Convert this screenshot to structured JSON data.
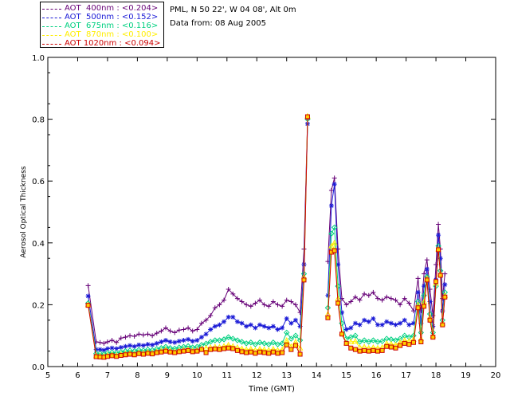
{
  "site_info": "PML, N 50 22', W 04 08', Alt 0m",
  "date_info": "Data from: 08 Aug 2005",
  "legend": [
    {
      "label": "AOT  400nm : <0.204>",
      "color": "#660077"
    },
    {
      "label": "AOT  500nm : <0.152>",
      "color": "#1a1ad6"
    },
    {
      "label": "AOT  675nm : <0.116>",
      "color": "#00d080"
    },
    {
      "label": "AOT  870nm : <0.100>",
      "color": "#ffee00"
    },
    {
      "label": "AOT 1020nm : <0.094>",
      "color": "#cc0000"
    }
  ],
  "chart_data": {
    "type": "line",
    "title": "",
    "xlabel": "Time (GMT)",
    "ylabel": "Aerosol Optical Thickness",
    "xlim": [
      5,
      20
    ],
    "ylim": [
      0,
      1.0
    ],
    "xticks": [
      5,
      6,
      7,
      8,
      9,
      10,
      11,
      12,
      13,
      14,
      15,
      16,
      17,
      18,
      19,
      20
    ],
    "yticks": [
      0.0,
      0.2,
      0.4,
      0.6,
      0.8,
      1.0
    ],
    "ytick_labels": [
      "0.0",
      "0.2",
      "0.4",
      "0.6",
      "0.8",
      "1.0"
    ],
    "grid": false,
    "series": [
      {
        "name": "AOT 400nm",
        "color": "#660077",
        "marker": "+",
        "x": [
          6.35,
          6.62,
          6.75,
          6.88,
          7.0,
          7.15,
          7.3,
          7.45,
          7.6,
          7.75,
          7.9,
          8.05,
          8.2,
          8.35,
          8.5,
          8.65,
          8.8,
          8.95,
          9.1,
          9.25,
          9.4,
          9.55,
          9.7,
          9.85,
          10.0,
          10.15,
          10.3,
          10.45,
          10.6,
          10.75,
          10.9,
          11.05,
          11.2,
          11.35,
          11.5,
          11.65,
          11.8,
          11.95,
          12.1,
          12.25,
          12.4,
          12.55,
          12.7,
          12.85,
          13.0,
          13.15,
          13.3,
          13.45,
          13.58,
          13.7,
          14.38,
          14.5,
          14.6,
          14.72,
          14.85,
          15.0,
          15.15,
          15.3,
          15.45,
          15.6,
          15.75,
          15.9,
          16.05,
          16.2,
          16.35,
          16.5,
          16.65,
          16.8,
          16.95,
          17.1,
          17.25,
          17.4,
          17.5,
          17.6,
          17.7,
          17.8,
          17.9,
          18.0,
          18.08,
          18.15,
          18.22,
          18.3
        ],
        "y": [
          0.262,
          0.08,
          0.078,
          0.075,
          0.08,
          0.085,
          0.078,
          0.092,
          0.095,
          0.1,
          0.098,
          0.105,
          0.102,
          0.105,
          0.1,
          0.108,
          0.115,
          0.125,
          0.115,
          0.11,
          0.118,
          0.12,
          0.125,
          0.115,
          0.12,
          0.14,
          0.15,
          0.165,
          0.19,
          0.2,
          0.215,
          0.25,
          0.235,
          0.22,
          0.21,
          0.2,
          0.195,
          0.205,
          0.215,
          0.2,
          0.195,
          0.21,
          0.2,
          0.195,
          0.215,
          0.21,
          0.2,
          0.175,
          0.38,
          0.8,
          0.34,
          0.57,
          0.61,
          0.38,
          0.22,
          0.2,
          0.21,
          0.225,
          0.215,
          0.235,
          0.23,
          0.24,
          0.22,
          0.215,
          0.225,
          0.22,
          0.215,
          0.2,
          0.22,
          0.205,
          0.18,
          0.285,
          0.18,
          0.3,
          0.345,
          0.25,
          0.165,
          0.33,
          0.46,
          0.38,
          0.22,
          0.3
        ]
      },
      {
        "name": "AOT 500nm",
        "color": "#1a1ad6",
        "marker": "*",
        "x": [
          6.35,
          6.62,
          6.75,
          6.88,
          7.0,
          7.15,
          7.3,
          7.45,
          7.6,
          7.75,
          7.9,
          8.05,
          8.2,
          8.35,
          8.5,
          8.65,
          8.8,
          8.95,
          9.1,
          9.25,
          9.4,
          9.55,
          9.7,
          9.85,
          10.0,
          10.15,
          10.3,
          10.45,
          10.6,
          10.75,
          10.9,
          11.05,
          11.2,
          11.35,
          11.5,
          11.65,
          11.8,
          11.95,
          12.1,
          12.25,
          12.4,
          12.55,
          12.7,
          12.85,
          13.0,
          13.15,
          13.3,
          13.45,
          13.58,
          13.7,
          14.38,
          14.5,
          14.6,
          14.72,
          14.85,
          15.0,
          15.15,
          15.3,
          15.45,
          15.6,
          15.75,
          15.9,
          16.05,
          16.2,
          16.35,
          16.5,
          16.65,
          16.8,
          16.95,
          17.1,
          17.25,
          17.4,
          17.5,
          17.6,
          17.7,
          17.8,
          17.9,
          18.0,
          18.08,
          18.15,
          18.22,
          18.3
        ],
        "y": [
          0.228,
          0.055,
          0.055,
          0.053,
          0.058,
          0.06,
          0.058,
          0.062,
          0.065,
          0.068,
          0.065,
          0.07,
          0.068,
          0.072,
          0.07,
          0.075,
          0.08,
          0.085,
          0.08,
          0.078,
          0.082,
          0.085,
          0.088,
          0.082,
          0.085,
          0.095,
          0.105,
          0.12,
          0.13,
          0.135,
          0.145,
          0.16,
          0.16,
          0.145,
          0.14,
          0.13,
          0.135,
          0.125,
          0.135,
          0.13,
          0.125,
          0.13,
          0.12,
          0.125,
          0.155,
          0.14,
          0.15,
          0.13,
          0.33,
          0.785,
          0.23,
          0.52,
          0.59,
          0.33,
          0.175,
          0.12,
          0.125,
          0.14,
          0.135,
          0.15,
          0.145,
          0.155,
          0.135,
          0.135,
          0.145,
          0.14,
          0.135,
          0.14,
          0.15,
          0.135,
          0.14,
          0.24,
          0.14,
          0.26,
          0.315,
          0.21,
          0.13,
          0.28,
          0.425,
          0.35,
          0.18,
          0.265
        ]
      },
      {
        "name": "AOT 675nm",
        "color": "#00d080",
        "marker": "diamond",
        "x": [
          6.35,
          6.62,
          6.75,
          6.88,
          7.0,
          7.15,
          7.3,
          7.45,
          7.6,
          7.75,
          7.9,
          8.05,
          8.2,
          8.35,
          8.5,
          8.65,
          8.8,
          8.95,
          9.1,
          9.25,
          9.4,
          9.55,
          9.7,
          9.85,
          10.0,
          10.15,
          10.3,
          10.45,
          10.6,
          10.75,
          10.9,
          11.05,
          11.2,
          11.35,
          11.5,
          11.65,
          11.8,
          11.95,
          12.1,
          12.25,
          12.4,
          12.55,
          12.7,
          12.85,
          13.0,
          13.15,
          13.3,
          13.45,
          13.58,
          13.7,
          14.38,
          14.5,
          14.6,
          14.72,
          14.85,
          15.0,
          15.15,
          15.3,
          15.45,
          15.6,
          15.75,
          15.9,
          16.05,
          16.2,
          16.35,
          16.5,
          16.65,
          16.8,
          16.95,
          17.1,
          17.25,
          17.4,
          17.5,
          17.6,
          17.7,
          17.8,
          17.9,
          18.0,
          18.08,
          18.15,
          18.22,
          18.3
        ],
        "y": [
          0.205,
          0.042,
          0.042,
          0.04,
          0.044,
          0.046,
          0.044,
          0.047,
          0.05,
          0.052,
          0.05,
          0.054,
          0.052,
          0.055,
          0.053,
          0.057,
          0.06,
          0.064,
          0.06,
          0.058,
          0.062,
          0.064,
          0.066,
          0.062,
          0.064,
          0.07,
          0.074,
          0.08,
          0.085,
          0.085,
          0.088,
          0.095,
          0.09,
          0.085,
          0.08,
          0.075,
          0.078,
          0.072,
          0.078,
          0.075,
          0.072,
          0.078,
          0.072,
          0.075,
          0.11,
          0.09,
          0.1,
          0.085,
          0.3,
          0.8,
          0.19,
          0.43,
          0.45,
          0.26,
          0.14,
          0.09,
          0.095,
          0.1,
          0.08,
          0.085,
          0.08,
          0.085,
          0.08,
          0.082,
          0.09,
          0.088,
          0.085,
          0.09,
          0.1,
          0.095,
          0.1,
          0.21,
          0.11,
          0.23,
          0.29,
          0.17,
          0.11,
          0.26,
          0.39,
          0.31,
          0.15,
          0.24
        ]
      },
      {
        "name": "AOT 870nm",
        "color": "#ffee00",
        "marker": "triangle",
        "x": [
          6.35,
          6.62,
          6.75,
          6.88,
          7.0,
          7.15,
          7.3,
          7.45,
          7.6,
          7.75,
          7.9,
          8.05,
          8.2,
          8.35,
          8.5,
          8.65,
          8.8,
          8.95,
          9.1,
          9.25,
          9.4,
          9.55,
          9.7,
          9.85,
          10.0,
          10.15,
          10.3,
          10.45,
          10.6,
          10.75,
          10.9,
          11.05,
          11.2,
          11.35,
          11.5,
          11.65,
          11.8,
          11.95,
          12.1,
          12.25,
          12.4,
          12.55,
          12.7,
          12.85,
          13.0,
          13.15,
          13.3,
          13.45,
          13.58,
          13.7,
          14.38,
          14.5,
          14.6,
          14.72,
          14.85,
          15.0,
          15.15,
          15.3,
          15.45,
          15.6,
          15.75,
          15.9,
          16.05,
          16.2,
          16.35,
          16.5,
          16.65,
          16.8,
          16.95,
          17.1,
          17.25,
          17.4,
          17.5,
          17.6,
          17.7,
          17.8,
          17.9,
          18.0,
          18.08,
          18.15,
          18.22,
          18.3
        ],
        "y": [
          0.2,
          0.035,
          0.034,
          0.033,
          0.036,
          0.038,
          0.036,
          0.039,
          0.041,
          0.043,
          0.041,
          0.045,
          0.043,
          0.046,
          0.044,
          0.048,
          0.05,
          0.054,
          0.05,
          0.048,
          0.051,
          0.053,
          0.055,
          0.051,
          0.053,
          0.058,
          0.06,
          0.062,
          0.064,
          0.063,
          0.066,
          0.07,
          0.066,
          0.062,
          0.058,
          0.055,
          0.057,
          0.053,
          0.057,
          0.055,
          0.053,
          0.057,
          0.053,
          0.055,
          0.085,
          0.065,
          0.08,
          0.06,
          0.29,
          0.81,
          0.17,
          0.39,
          0.4,
          0.22,
          0.11,
          0.076,
          0.08,
          0.082,
          0.062,
          0.064,
          0.06,
          0.062,
          0.06,
          0.062,
          0.075,
          0.073,
          0.07,
          0.078,
          0.085,
          0.082,
          0.088,
          0.2,
          0.09,
          0.21,
          0.285,
          0.16,
          0.1,
          0.27,
          0.38,
          0.3,
          0.14,
          0.23
        ]
      },
      {
        "name": "AOT 1020nm",
        "color": "#cc0000",
        "marker": "square",
        "x": [
          6.35,
          6.62,
          6.75,
          6.88,
          7.0,
          7.15,
          7.3,
          7.45,
          7.6,
          7.75,
          7.9,
          8.05,
          8.2,
          8.35,
          8.5,
          8.65,
          8.8,
          8.95,
          9.1,
          9.25,
          9.4,
          9.55,
          9.7,
          9.85,
          10.0,
          10.15,
          10.3,
          10.45,
          10.6,
          10.75,
          10.9,
          11.05,
          11.2,
          11.35,
          11.5,
          11.65,
          11.8,
          11.95,
          12.1,
          12.25,
          12.4,
          12.55,
          12.7,
          12.85,
          13.0,
          13.15,
          13.3,
          13.45,
          13.58,
          13.7,
          14.38,
          14.5,
          14.6,
          14.72,
          14.85,
          15.0,
          15.15,
          15.3,
          15.45,
          15.6,
          15.75,
          15.9,
          16.05,
          16.2,
          16.35,
          16.5,
          16.65,
          16.8,
          16.95,
          17.1,
          17.25,
          17.4,
          17.5,
          17.6,
          17.7,
          17.8,
          17.9,
          18.0,
          18.08,
          18.15,
          18.22,
          18.3
        ],
        "y": [
          0.198,
          0.032,
          0.031,
          0.03,
          0.033,
          0.035,
          0.033,
          0.036,
          0.038,
          0.04,
          0.038,
          0.042,
          0.04,
          0.043,
          0.041,
          0.045,
          0.047,
          0.05,
          0.047,
          0.045,
          0.048,
          0.05,
          0.052,
          0.048,
          0.05,
          0.055,
          0.045,
          0.055,
          0.057,
          0.055,
          0.058,
          0.06,
          0.058,
          0.052,
          0.048,
          0.045,
          0.047,
          0.043,
          0.047,
          0.045,
          0.043,
          0.047,
          0.043,
          0.045,
          0.07,
          0.055,
          0.068,
          0.04,
          0.28,
          0.808,
          0.158,
          0.37,
          0.375,
          0.205,
          0.105,
          0.075,
          0.06,
          0.055,
          0.05,
          0.052,
          0.05,
          0.052,
          0.05,
          0.052,
          0.065,
          0.063,
          0.06,
          0.068,
          0.075,
          0.072,
          0.078,
          0.19,
          0.08,
          0.195,
          0.28,
          0.15,
          0.095,
          0.275,
          0.378,
          0.295,
          0.135,
          0.225
        ]
      }
    ]
  }
}
